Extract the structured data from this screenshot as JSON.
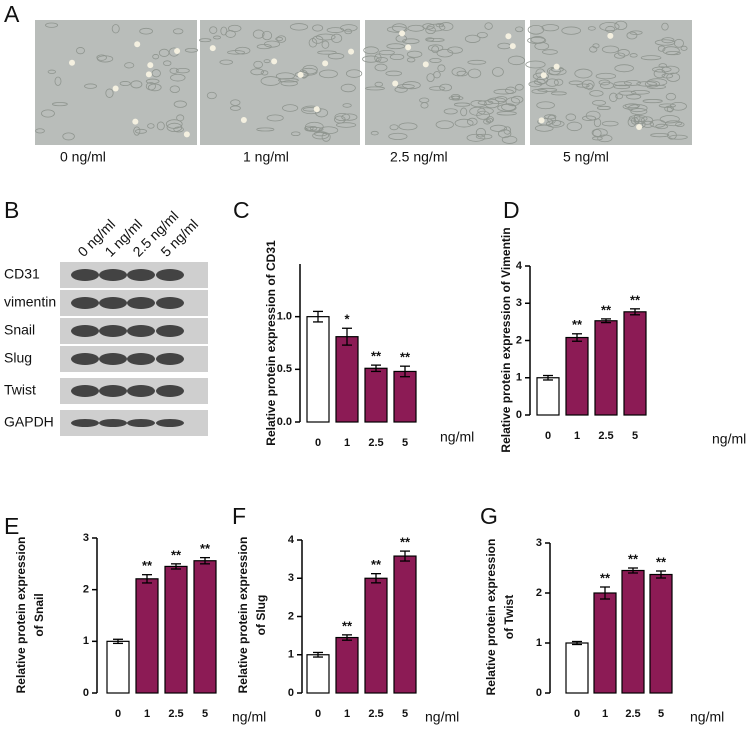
{
  "figure": {
    "a": {
      "label": "A",
      "captions": [
        "0 ng/ml",
        "1 ng/ml",
        "2.5 ng/ml",
        "5 ng/ml"
      ]
    },
    "b": {
      "label": "B",
      "lanes": [
        "0 ng/ml",
        "1 ng/ml",
        "2.5 ng/ml",
        "5 ng/ml"
      ],
      "bands": [
        "CD31",
        "vimentin",
        "Snail",
        "Slug",
        "Twist",
        "GAPDH"
      ]
    }
  },
  "chart_data": [
    {
      "type": "bar",
      "panel": "C",
      "ylabel": [
        "Relative protein expression of CD31"
      ],
      "x_unit": "ng/ml",
      "categories": [
        "0",
        "1",
        "2.5",
        "5"
      ],
      "values": [
        1.0,
        0.81,
        0.51,
        0.48
      ],
      "errors": [
        0.05,
        0.08,
        0.03,
        0.05
      ],
      "annotations": [
        null,
        "*",
        "**",
        "**"
      ],
      "colors": [
        "#ffffff",
        "#8c1b55",
        "#8c1b55",
        "#8c1b55"
      ],
      "ylim": [
        0,
        1.5
      ],
      "yticks": [
        {
          "value": 0,
          "label": "0.0"
        },
        0.5,
        {
          "value": 1,
          "label": "1.0"
        }
      ]
    },
    {
      "type": "bar",
      "panel": "D",
      "ylabel": [
        "Relative protein expression of Vimentin"
      ],
      "x_unit": "ng/ml",
      "categories": [
        "0",
        "1",
        "2.5",
        "5"
      ],
      "values": [
        1.0,
        2.08,
        2.53,
        2.77
      ],
      "errors": [
        0.06,
        0.1,
        0.05,
        0.08
      ],
      "annotations": [
        null,
        "**",
        "**",
        "**"
      ],
      "colors": [
        "#ffffff",
        "#8c1b55",
        "#8c1b55",
        "#8c1b55"
      ],
      "ylim": [
        0,
        4
      ],
      "yticks": [
        0,
        1,
        2,
        3,
        4
      ]
    },
    {
      "type": "bar",
      "panel": "E",
      "ylabel": [
        "Relative protein expression",
        "of Snail"
      ],
      "x_unit": "ng/ml",
      "categories": [
        "0",
        "1",
        "2.5",
        "5"
      ],
      "values": [
        1.0,
        2.21,
        2.45,
        2.56
      ],
      "errors": [
        0.04,
        0.08,
        0.05,
        0.06
      ],
      "annotations": [
        null,
        "**",
        "**",
        "**"
      ],
      "colors": [
        "#ffffff",
        "#8c1b55",
        "#8c1b55",
        "#8c1b55"
      ],
      "ylim": [
        0,
        3
      ],
      "yticks": [
        0,
        1,
        2,
        3
      ]
    },
    {
      "type": "bar",
      "panel": "F",
      "ylabel": [
        "Relative protein expression",
        "of Slug"
      ],
      "x_unit": "ng/ml",
      "categories": [
        "0",
        "1",
        "2.5",
        "5"
      ],
      "values": [
        1.0,
        1.45,
        3.0,
        3.58
      ],
      "errors": [
        0.06,
        0.07,
        0.12,
        0.13
      ],
      "annotations": [
        null,
        "**",
        "**",
        "**"
      ],
      "colors": [
        "#ffffff",
        "#8c1b55",
        "#8c1b55",
        "#8c1b55"
      ],
      "ylim": [
        0,
        4
      ],
      "yticks": [
        0,
        1,
        2,
        3,
        4
      ]
    },
    {
      "type": "bar",
      "panel": "G",
      "ylabel": [
        "Relative protein expression",
        "of Twist"
      ],
      "x_unit": "ng/ml",
      "categories": [
        "0",
        "1",
        "2.5",
        "5"
      ],
      "values": [
        1.0,
        2.0,
        2.45,
        2.37
      ],
      "errors": [
        0.03,
        0.12,
        0.05,
        0.07
      ],
      "annotations": [
        null,
        "**",
        "**",
        "**"
      ],
      "colors": [
        "#ffffff",
        "#8c1b55",
        "#8c1b55",
        "#8c1b55"
      ],
      "ylim": [
        0,
        3
      ],
      "yticks": [
        0,
        1,
        2,
        3
      ]
    }
  ]
}
